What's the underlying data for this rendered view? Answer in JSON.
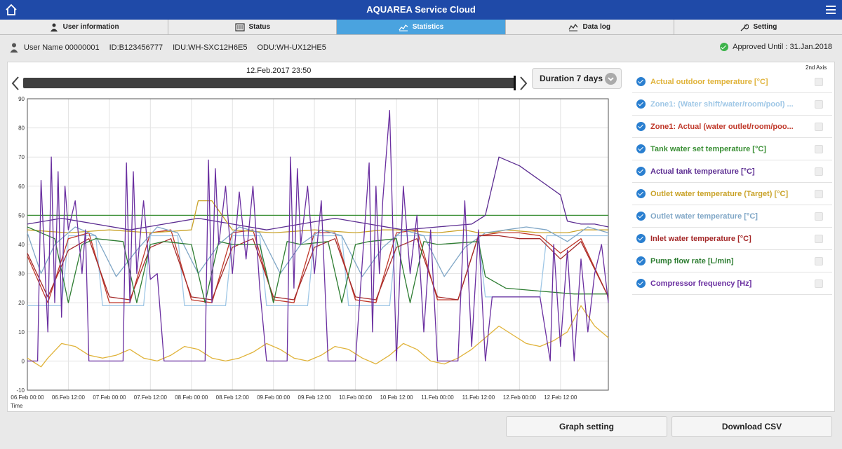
{
  "app": {
    "title": "AQUAREA Service Cloud"
  },
  "tabs": [
    {
      "label": "User information",
      "icon": "person-icon",
      "active": false
    },
    {
      "label": "Status",
      "icon": "status-panel-icon",
      "active": false
    },
    {
      "label": "Statistics",
      "icon": "line-chart-icon",
      "active": true
    },
    {
      "label": "Data log",
      "icon": "data-log-icon",
      "active": false
    },
    {
      "label": "Setting",
      "icon": "wrench-icon",
      "active": false
    }
  ],
  "user": {
    "name": "User Name 00000001",
    "id": "ID:B123456777",
    "idu": "IDU:WH-SXC12H6E5",
    "odu": "ODU:WH-UX12HE5",
    "approved": "Approved Until : 31.Jan.2018"
  },
  "controls": {
    "date_label": "12.Feb.2017 23:50",
    "duration_label": "Duration 7 days",
    "second_axis_label": "2nd Axis",
    "graph_setting_label": "Graph setting",
    "download_csv_label": "Download CSV"
  },
  "legend": [
    {
      "label": "Actual outdoor temperature [°C]",
      "color": "#e0b33a",
      "checked": true,
      "second_axis": false
    },
    {
      "label": "Zone1: (Water shift/water/room/pool) ...",
      "color": "#9fc7e6",
      "checked": true,
      "second_axis": false
    },
    {
      "label": "Zone1: Actual (water outlet/room/poo...",
      "color": "#c0392b",
      "checked": true,
      "second_axis": false
    },
    {
      "label": "Tank water set temperature [°C]",
      "color": "#3a8f35",
      "checked": true,
      "second_axis": false
    },
    {
      "label": "Actual tank temperature [°C]",
      "color": "#5b2c91",
      "checked": true,
      "second_axis": false
    },
    {
      "label": "Outlet water temperature (Target) [°C]",
      "color": "#c9a227",
      "checked": true,
      "second_axis": false
    },
    {
      "label": "Outlet water temperature [°C]",
      "color": "#7fa6c6",
      "checked": true,
      "second_axis": false
    },
    {
      "label": "Inlet water temperature [°C]",
      "color": "#a52a2a",
      "checked": true,
      "second_axis": false
    },
    {
      "label": "Pump flow rate [L/min]",
      "color": "#2e7d32",
      "checked": true,
      "second_axis": false
    },
    {
      "label": "Compressor frequency [Hz]",
      "color": "#6a2fa0",
      "checked": true,
      "second_axis": false
    }
  ],
  "chart_data": {
    "type": "line",
    "xlabel": "Time",
    "ylabel": "",
    "ylim": [
      -10,
      90
    ],
    "yticks": [
      -10,
      0,
      10,
      20,
      30,
      40,
      50,
      60,
      70,
      80,
      90
    ],
    "xticks": [
      "06.Feb 00:00",
      "06.Feb 12:00",
      "07.Feb 00:00",
      "07.Feb 12:00",
      "08.Feb 00:00",
      "08.Feb 12:00",
      "09.Feb 00:00",
      "09.Feb 12:00",
      "10.Feb 00:00",
      "10.Feb 12:00",
      "11.Feb 00:00",
      "11.Feb 12:00",
      "12.Feb 00:00",
      "12.Feb 12:00"
    ],
    "x_hours_end": 170,
    "grid": true,
    "series": [
      {
        "name": "Actual outdoor temperature [°C]",
        "color": "#e0b33a",
        "x": [
          0,
          4,
          6,
          10,
          14,
          18,
          22,
          26,
          30,
          34,
          38,
          42,
          46,
          50,
          54,
          58,
          62,
          66,
          70,
          74,
          78,
          82,
          86,
          90,
          94,
          98,
          102,
          106,
          110,
          114,
          118,
          122,
          126,
          130,
          134,
          138,
          142,
          146,
          150,
          154,
          158,
          162,
          166,
          170
        ],
        "y": [
          1,
          -2,
          1,
          6,
          5,
          2,
          1,
          2,
          4,
          1,
          0,
          2,
          5,
          4,
          1,
          0,
          1,
          3,
          6,
          4,
          1,
          0,
          2,
          5,
          4,
          1,
          -1,
          2,
          6,
          4,
          0,
          -1,
          1,
          4,
          8,
          12,
          9,
          6,
          5,
          7,
          10,
          19,
          12,
          8
        ]
      },
      {
        "name": "Zone1: (Water shift/water/room/pool) ...",
        "color": "#9fc7e6",
        "x": [
          0,
          10,
          12,
          20,
          22,
          34,
          36,
          44,
          46,
          58,
          60,
          68,
          70,
          82,
          84,
          92,
          94,
          106,
          108,
          132,
          134,
          150,
          152,
          170
        ],
        "y": [
          19,
          19,
          43,
          43,
          19,
          19,
          43,
          43,
          19,
          19,
          43,
          43,
          19,
          19,
          43,
          43,
          19,
          19,
          43,
          43,
          22,
          22,
          43,
          43
        ]
      },
      {
        "name": "Zone1: Actual (water outlet/room/poo...",
        "color": "#c0392b",
        "x": [
          0,
          6,
          12,
          18,
          24,
          30,
          36,
          42,
          48,
          54,
          60,
          66,
          72,
          78,
          84,
          90,
          96,
          102,
          108,
          114,
          120,
          126,
          132,
          138,
          144,
          150,
          156,
          162,
          170
        ],
        "y": [
          36,
          20,
          42,
          44,
          20,
          20,
          44,
          45,
          21,
          20,
          44,
          45,
          21,
          20,
          44,
          44,
          21,
          20,
          44,
          45,
          21,
          21,
          43,
          44,
          44,
          43,
          37,
          42,
          22
        ]
      },
      {
        "name": "Tank water set temperature [°C]",
        "color": "#3a8f35",
        "x": [
          0,
          170
        ],
        "y": [
          50,
          50
        ]
      },
      {
        "name": "Actual tank temperature [°C]",
        "color": "#5b2c91",
        "x": [
          0,
          10,
          20,
          30,
          40,
          50,
          60,
          70,
          80,
          90,
          100,
          110,
          120,
          130,
          134,
          138,
          144,
          150,
          156,
          158,
          162,
          166,
          170
        ],
        "y": [
          47,
          49,
          47,
          45,
          47,
          49,
          47,
          45,
          47,
          49,
          47,
          45,
          46,
          47,
          50,
          70,
          67,
          62,
          57,
          48,
          47,
          47,
          46
        ]
      },
      {
        "name": "Outlet water temperature (Target) [°C]",
        "color": "#c9a227",
        "x": [
          0,
          12,
          24,
          36,
          48,
          50,
          54,
          60,
          72,
          84,
          96,
          104,
          108,
          120,
          128,
          132,
          136,
          140,
          150,
          158,
          162,
          170
        ],
        "y": [
          45,
          44,
          45,
          44,
          45,
          55,
          55,
          45,
          44,
          45,
          44,
          45,
          45,
          44,
          45,
          44,
          44,
          45,
          44,
          44,
          45,
          45
        ]
      },
      {
        "name": "Outlet water temperature [°C]",
        "color": "#7fa6c6",
        "x": [
          0,
          4,
          8,
          14,
          20,
          26,
          32,
          38,
          44,
          50,
          56,
          62,
          68,
          74,
          80,
          86,
          92,
          98,
          104,
          110,
          116,
          122,
          128,
          134,
          140,
          146,
          152,
          158,
          164,
          170
        ],
        "y": [
          44,
          30,
          40,
          46,
          43,
          29,
          38,
          46,
          44,
          30,
          40,
          46,
          44,
          30,
          40,
          45,
          43,
          29,
          39,
          45,
          43,
          29,
          39,
          44,
          45,
          46,
          45,
          41,
          46,
          44
        ]
      },
      {
        "name": "Inlet water temperature [°C]",
        "color": "#a52a2a",
        "x": [
          0,
          6,
          12,
          18,
          24,
          30,
          36,
          42,
          48,
          54,
          60,
          66,
          72,
          78,
          84,
          90,
          96,
          102,
          108,
          114,
          120,
          126,
          132,
          138,
          144,
          150,
          156,
          162,
          170
        ],
        "y": [
          37,
          22,
          38,
          42,
          22,
          21,
          39,
          42,
          22,
          21,
          39,
          42,
          22,
          21,
          39,
          42,
          22,
          21,
          39,
          42,
          22,
          21,
          43,
          43,
          42,
          42,
          35,
          41,
          22
        ]
      },
      {
        "name": "Pump flow rate [L/min]",
        "color": "#2e7d32",
        "x": [
          0,
          8,
          12,
          16,
          20,
          28,
          32,
          36,
          40,
          48,
          52,
          56,
          60,
          68,
          72,
          76,
          80,
          88,
          92,
          96,
          100,
          108,
          112,
          116,
          120,
          132,
          134,
          140,
          150,
          160,
          170
        ],
        "y": [
          46,
          42,
          20,
          40,
          42,
          41,
          20,
          40,
          41,
          40,
          20,
          41,
          40,
          40,
          20,
          41,
          40,
          41,
          20,
          40,
          41,
          42,
          20,
          41,
          40,
          41,
          29,
          25,
          24,
          23,
          23
        ]
      },
      {
        "name": "Compressor frequency [Hz]",
        "color": "#6a2fa0",
        "x": [
          0,
          3,
          4,
          6,
          7,
          8,
          9,
          10,
          11,
          12,
          14,
          16,
          17,
          18,
          20,
          22,
          24,
          28,
          29,
          30,
          31,
          32,
          34,
          36,
          38,
          40,
          44,
          46,
          48,
          52,
          53,
          54,
          55,
          56,
          58,
          60,
          62,
          64,
          66,
          68,
          70,
          72,
          76,
          77,
          78,
          79,
          80,
          82,
          84,
          86,
          88,
          90,
          92,
          94,
          96,
          100,
          101,
          102,
          103,
          104,
          106,
          108,
          110,
          112,
          114,
          116,
          118,
          120,
          124,
          126,
          128,
          130,
          132,
          134,
          136,
          150,
          153,
          154,
          156,
          158,
          160,
          162,
          164,
          166,
          168,
          170
        ],
        "y": [
          0,
          0,
          62,
          10,
          70,
          20,
          65,
          15,
          60,
          45,
          55,
          30,
          45,
          0,
          0,
          0,
          0,
          0,
          68,
          20,
          65,
          30,
          55,
          28,
          30,
          0,
          0,
          0,
          0,
          0,
          69,
          20,
          66,
          40,
          60,
          30,
          58,
          35,
          60,
          25,
          0,
          0,
          0,
          70,
          25,
          66,
          40,
          60,
          30,
          55,
          0,
          0,
          0,
          0,
          0,
          68,
          10,
          60,
          30,
          55,
          86,
          0,
          60,
          30,
          50,
          10,
          45,
          0,
          0,
          0,
          55,
          5,
          45,
          0,
          22,
          22,
          0,
          40,
          5,
          38,
          0,
          35,
          10,
          30,
          40,
          20
        ]
      }
    ]
  }
}
